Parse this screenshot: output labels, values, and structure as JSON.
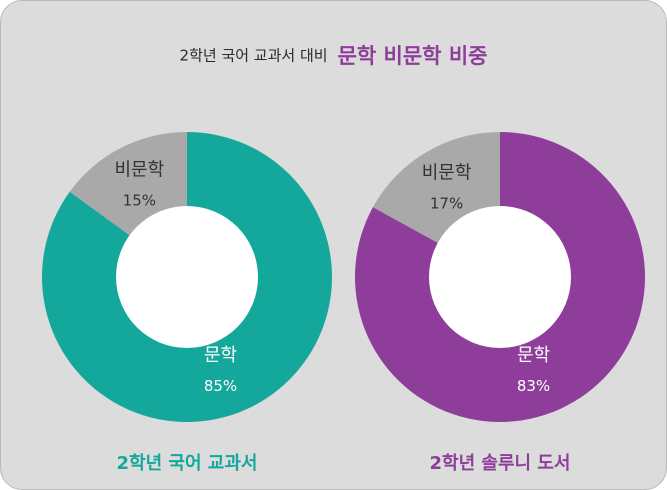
{
  "title": {
    "prefix": "2학년 국어 교과서 대비",
    "main": "문학 비문학 비중"
  },
  "chart_data": [
    {
      "type": "pie",
      "name": "2학년 국어 교과서",
      "slices": [
        {
          "label": "문학",
          "value": 85,
          "value_label": "85%",
          "color": "#14a89c"
        },
        {
          "label": "비문학",
          "value": 15,
          "value_label": "15%",
          "color": "#a9a9a9"
        }
      ]
    },
    {
      "type": "pie",
      "name": "2학년 솔루니 도서",
      "slices": [
        {
          "label": "문학",
          "value": 83,
          "value_label": "83%",
          "color": "#8e3e9a"
        },
        {
          "label": "비문학",
          "value": 17,
          "value_label": "17%",
          "color": "#a9a9a9"
        }
      ]
    }
  ],
  "colors": {
    "teal": "#14a89c",
    "purple": "#8e3e9a",
    "gray": "#a9a9a9",
    "panel": "#dcdcdc",
    "hole": "#ffffff"
  }
}
